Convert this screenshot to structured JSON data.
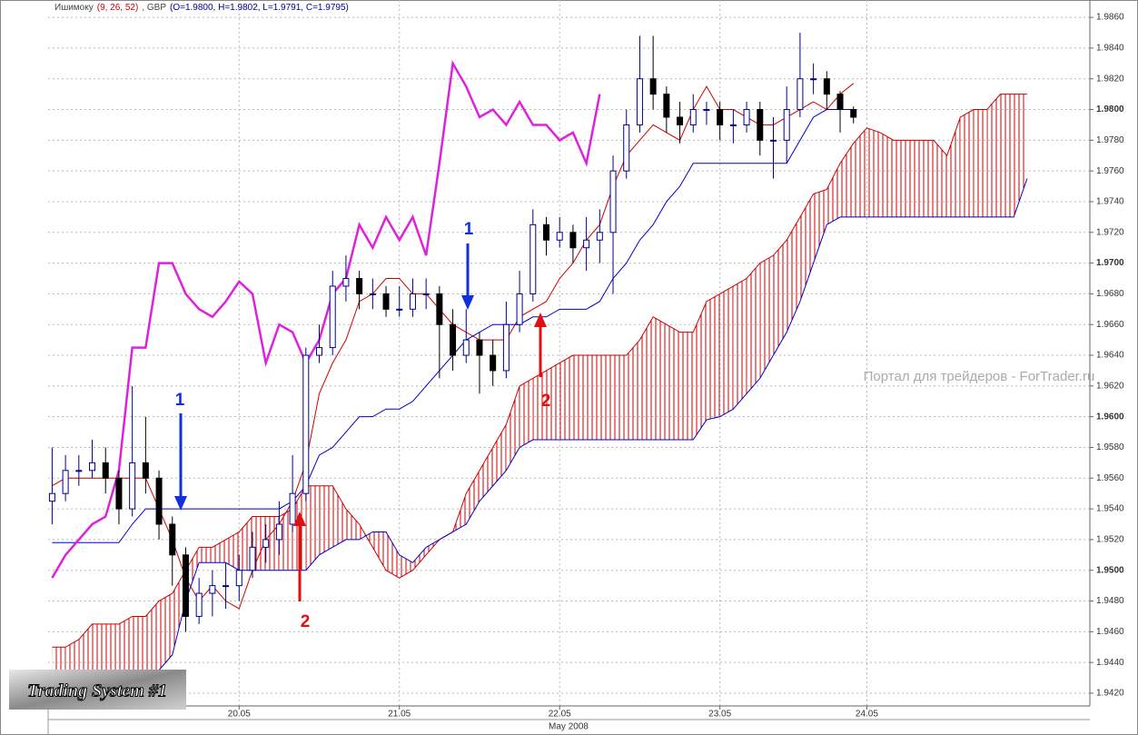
{
  "chart_data": {
    "type": "candlestick",
    "title_parts": [
      "Ишимоку",
      "(9, 26, 52)",
      ", GBP",
      "(O=1.9800, H=1.9802, L=1.9791, C=1.9795)"
    ],
    "title_colors": [
      "#444444",
      "#cc0000",
      "#444444",
      "#000099"
    ],
    "candles": [
      [
        1.9545,
        1.958,
        1.953,
        1.955
      ],
      [
        1.955,
        1.9575,
        1.9545,
        1.9565
      ],
      [
        1.9565,
        1.9575,
        1.9555,
        1.9565
      ],
      [
        1.9565,
        1.9585,
        1.956,
        1.957
      ],
      [
        1.957,
        1.958,
        1.955,
        1.956
      ],
      [
        1.956,
        1.9565,
        1.953,
        1.954
      ],
      [
        1.954,
        1.962,
        1.9535,
        1.957
      ],
      [
        1.957,
        1.96,
        1.955,
        1.956
      ],
      [
        1.956,
        1.9565,
        1.952,
        1.953
      ],
      [
        1.953,
        1.9535,
        1.949,
        1.951
      ],
      [
        1.951,
        1.9515,
        1.946,
        1.947
      ],
      [
        1.947,
        1.9495,
        1.9465,
        1.9485
      ],
      [
        1.9485,
        1.95,
        1.947,
        1.949
      ],
      [
        1.949,
        1.9505,
        1.9475,
        1.949
      ],
      [
        1.949,
        1.951,
        1.948,
        1.95
      ],
      [
        1.95,
        1.9525,
        1.9495,
        1.9515
      ],
      [
        1.9515,
        1.953,
        1.9505,
        1.952
      ],
      [
        1.952,
        1.9545,
        1.951,
        1.953
      ],
      [
        1.953,
        1.9575,
        1.9525,
        1.955
      ],
      [
        1.955,
        1.9645,
        1.9545,
        1.964
      ],
      [
        1.964,
        1.966,
        1.9635,
        1.9645
      ],
      [
        1.9645,
        1.9695,
        1.964,
        1.9685
      ],
      [
        1.9685,
        1.9705,
        1.9675,
        1.969
      ],
      [
        1.969,
        1.9695,
        1.967,
        1.968
      ],
      [
        1.968,
        1.969,
        1.967,
        1.968
      ],
      [
        1.968,
        1.9685,
        1.9665,
        1.967
      ],
      [
        1.967,
        1.9685,
        1.9665,
        1.967
      ],
      [
        1.967,
        1.969,
        1.9665,
        1.968
      ],
      [
        1.968,
        1.969,
        1.967,
        1.968
      ],
      [
        1.968,
        1.9685,
        1.9625,
        1.966
      ],
      [
        1.966,
        1.967,
        1.963,
        1.964
      ],
      [
        1.964,
        1.967,
        1.9635,
        1.965
      ],
      [
        1.965,
        1.9655,
        1.9615,
        1.964
      ],
      [
        1.964,
        1.965,
        1.962,
        1.963
      ],
      [
        1.963,
        1.9675,
        1.9625,
        1.966
      ],
      [
        1.966,
        1.9695,
        1.9655,
        1.968
      ],
      [
        1.968,
        1.9735,
        1.9675,
        1.9725
      ],
      [
        1.9725,
        1.973,
        1.9705,
        1.9715
      ],
      [
        1.9715,
        1.973,
        1.971,
        1.972
      ],
      [
        1.972,
        1.9725,
        1.97,
        1.971
      ],
      [
        1.971,
        1.973,
        1.9695,
        1.9715
      ],
      [
        1.9715,
        1.9735,
        1.97,
        1.972
      ],
      [
        1.972,
        1.977,
        1.968,
        1.976
      ],
      [
        1.976,
        1.98,
        1.9755,
        1.979
      ],
      [
        1.979,
        1.9848,
        1.9785,
        1.982
      ],
      [
        1.982,
        1.9848,
        1.98,
        1.981
      ],
      [
        1.981,
        1.9815,
        1.9785,
        1.9795
      ],
      [
        1.9795,
        1.9805,
        1.9778,
        1.979
      ],
      [
        1.979,
        1.981,
        1.9785,
        1.98
      ],
      [
        1.98,
        1.9805,
        1.979,
        1.98
      ],
      [
        1.98,
        1.9805,
        1.978,
        1.979
      ],
      [
        1.979,
        1.98,
        1.9778,
        1.979
      ],
      [
        1.979,
        1.9805,
        1.9785,
        1.98
      ],
      [
        1.98,
        1.9805,
        1.977,
        1.978
      ],
      [
        1.978,
        1.9795,
        1.9755,
        1.978
      ],
      [
        1.978,
        1.9815,
        1.9765,
        1.98
      ],
      [
        1.98,
        1.985,
        1.9795,
        1.982
      ],
      [
        1.982,
        1.983,
        1.981,
        1.982
      ],
      [
        1.982,
        1.9825,
        1.98,
        1.981
      ],
      [
        1.981,
        1.9812,
        1.9785,
        1.98
      ],
      [
        1.98,
        1.9802,
        1.9791,
        1.9795
      ]
    ],
    "up_color": "#ffffff",
    "up_edge": "#00008b",
    "down_color": "#000000",
    "lines": [
      {
        "color": "#cc0000",
        "width": 1,
        "values": [
          1.9555,
          1.956,
          1.956,
          1.956,
          1.956,
          1.956,
          1.956,
          1.956,
          1.954,
          1.952,
          1.9495,
          1.948,
          1.949,
          1.948,
          1.9475,
          1.95,
          1.952,
          1.953,
          1.9545,
          1.957,
          1.9615,
          1.9635,
          1.965,
          1.9675,
          1.968,
          1.969,
          1.969,
          1.968,
          1.968,
          1.967,
          1.966,
          1.9655,
          1.965,
          1.965,
          1.965,
          1.9665,
          1.967,
          1.9675,
          1.969,
          1.97,
          1.9715,
          1.9725,
          1.975,
          1.977,
          1.978,
          1.979,
          1.9785,
          1.978,
          1.98,
          1.9815,
          1.98,
          1.98,
          1.9795,
          1.979,
          1.979,
          1.9795,
          1.98,
          1.9805,
          1.98,
          1.981,
          1.9817
        ]
      },
      {
        "color": "#0000cc",
        "width": 1,
        "values": [
          1.9518,
          1.9518,
          1.9518,
          1.9518,
          1.9518,
          1.9518,
          1.953,
          1.954,
          1.954,
          1.954,
          1.954,
          1.954,
          1.954,
          1.954,
          1.954,
          1.954,
          1.954,
          1.954,
          1.9545,
          1.9555,
          1.9575,
          1.958,
          1.959,
          1.96,
          1.96,
          1.9605,
          1.9605,
          1.961,
          1.962,
          1.963,
          1.964,
          1.965,
          1.9655,
          1.966,
          1.966,
          1.966,
          1.9665,
          1.9665,
          1.967,
          1.967,
          1.967,
          1.9675,
          1.969,
          1.97,
          1.9715,
          1.9725,
          1.974,
          1.975,
          1.9765,
          1.9765,
          1.9765,
          1.9765,
          1.9765,
          1.9765,
          1.9765,
          1.9765,
          1.978,
          1.9795,
          1.98,
          1.98,
          1.98
        ]
      },
      {
        "color": "#dd22dd",
        "width": 2.5,
        "values": [
          1.9495,
          1.951,
          1.952,
          1.953,
          1.9535,
          1.9565,
          1.9645,
          1.9645,
          1.97,
          1.97,
          1.968,
          1.967,
          1.9665,
          1.9675,
          1.9688,
          1.968,
          1.9635,
          1.966,
          1.9655,
          1.9635,
          1.965,
          1.968,
          1.969,
          1.9725,
          1.971,
          1.973,
          1.9715,
          1.973,
          1.9705,
          1.9765,
          1.983,
          1.9815,
          1.9795,
          1.98,
          1.979,
          1.9805,
          1.979,
          1.979,
          1.978,
          1.9785,
          1.9765,
          1.981,
          null,
          null,
          null,
          null,
          null,
          null,
          null,
          null,
          null,
          null,
          null,
          null,
          null,
          null,
          null,
          null,
          null,
          null,
          null
        ]
      }
    ],
    "cloud": {
      "color": "#cc0000",
      "edge_colors": [
        "#cc0000",
        "#0000cc"
      ],
      "a": [
        1.945,
        1.945,
        1.9455,
        1.9465,
        1.9465,
        1.9465,
        1.947,
        1.947,
        1.948,
        1.9485,
        1.95,
        1.9515,
        1.9515,
        1.952,
        1.9525,
        1.9535,
        1.9535,
        1.9535,
        1.954,
        1.9555,
        1.9555,
        1.9555,
        1.954,
        1.953,
        1.9515,
        1.95,
        1.9495,
        1.95,
        1.951,
        1.952,
        1.9525,
        1.955,
        1.9565,
        1.958,
        1.9595,
        1.962,
        1.9625,
        1.963,
        1.9635,
        1.964,
        1.964,
        1.964,
        1.964,
        1.964,
        1.965,
        1.9665,
        1.966,
        1.9655,
        1.9655,
        1.9675,
        1.968,
        1.9685,
        1.969,
        1.97,
        1.9705,
        1.9715,
        1.973,
        1.9745,
        1.9748,
        1.9765,
        1.9778,
        1.9788,
        1.9785,
        1.978,
        1.978,
        1.978,
        1.978,
        1.977,
        1.9795,
        1.98,
        1.98,
        1.981,
        1.981,
        1.981
      ],
      "b": [
        1.9435,
        1.9435,
        1.9435,
        1.9435,
        1.9435,
        1.9435,
        1.9435,
        1.9435,
        1.9435,
        1.9445,
        1.948,
        1.9505,
        1.9505,
        1.9505,
        1.95,
        1.95,
        1.95,
        1.95,
        1.95,
        1.95,
        1.951,
        1.9515,
        1.952,
        1.952,
        1.9525,
        1.9525,
        1.951,
        1.9505,
        1.9515,
        1.952,
        1.9525,
        1.953,
        1.9545,
        1.9555,
        1.9565,
        1.958,
        1.9585,
        1.9585,
        1.9585,
        1.9585,
        1.9585,
        1.9585,
        1.9585,
        1.9585,
        1.9585,
        1.9585,
        1.9585,
        1.9585,
        1.9585,
        1.9598,
        1.96,
        1.9605,
        1.9615,
        1.9625,
        1.964,
        1.9655,
        1.9675,
        1.97,
        1.9725,
        1.973,
        1.973,
        1.973,
        1.973,
        1.973,
        1.973,
        1.973,
        1.973,
        1.973,
        1.973,
        1.973,
        1.973,
        1.973,
        1.973,
        1.9755
      ]
    },
    "xlim": [
      -0.3,
      77.7
    ],
    "xticks": [
      {
        "value": 14,
        "label": "20.05"
      },
      {
        "value": 26,
        "label": "21.05"
      },
      {
        "value": 38,
        "label": "22.05"
      },
      {
        "value": 50,
        "label": "23.05"
      },
      {
        "value": 61,
        "label": "24.05"
      }
    ],
    "x_period_label": "May 2008",
    "ylim": [
      1.94117,
      1.98713
    ],
    "yticks": [
      {
        "value": 1.942,
        "label": "1.9420"
      },
      {
        "value": 1.944,
        "label": "1.9440"
      },
      {
        "value": 1.946,
        "label": "1.9460"
      },
      {
        "value": 1.948,
        "label": "1.9480"
      },
      {
        "value": 1.95,
        "label": "1.9500"
      },
      {
        "value": 1.952,
        "label": "1.9520"
      },
      {
        "value": 1.954,
        "label": "1.9540"
      },
      {
        "value": 1.956,
        "label": "1.9560"
      },
      {
        "value": 1.958,
        "label": "1.9580"
      },
      {
        "value": 1.96,
        "label": "1.9600"
      },
      {
        "value": 1.962,
        "label": "1.9620"
      },
      {
        "value": 1.964,
        "label": "1.9640"
      },
      {
        "value": 1.966,
        "label": "1.9660"
      },
      {
        "value": 1.968,
        "label": "1.9680"
      },
      {
        "value": 1.97,
        "label": "1.9700"
      },
      {
        "value": 1.972,
        "label": "1.9720"
      },
      {
        "value": 1.974,
        "label": "1.9740"
      },
      {
        "value": 1.976,
        "label": "1.9760"
      },
      {
        "value": 1.978,
        "label": "1.9780"
      },
      {
        "value": 1.98,
        "label": "1.9800"
      },
      {
        "value": 1.982,
        "label": "1.9820"
      },
      {
        "value": 1.984,
        "label": "1.9840"
      },
      {
        "value": 1.986,
        "label": "1.9860"
      }
    ],
    "grid": true,
    "annotations": [
      "1",
      "2",
      "1",
      "2"
    ],
    "watermark": "Портал для трейдеров - ForTrader.ru",
    "logo": "Trading System #1"
  }
}
